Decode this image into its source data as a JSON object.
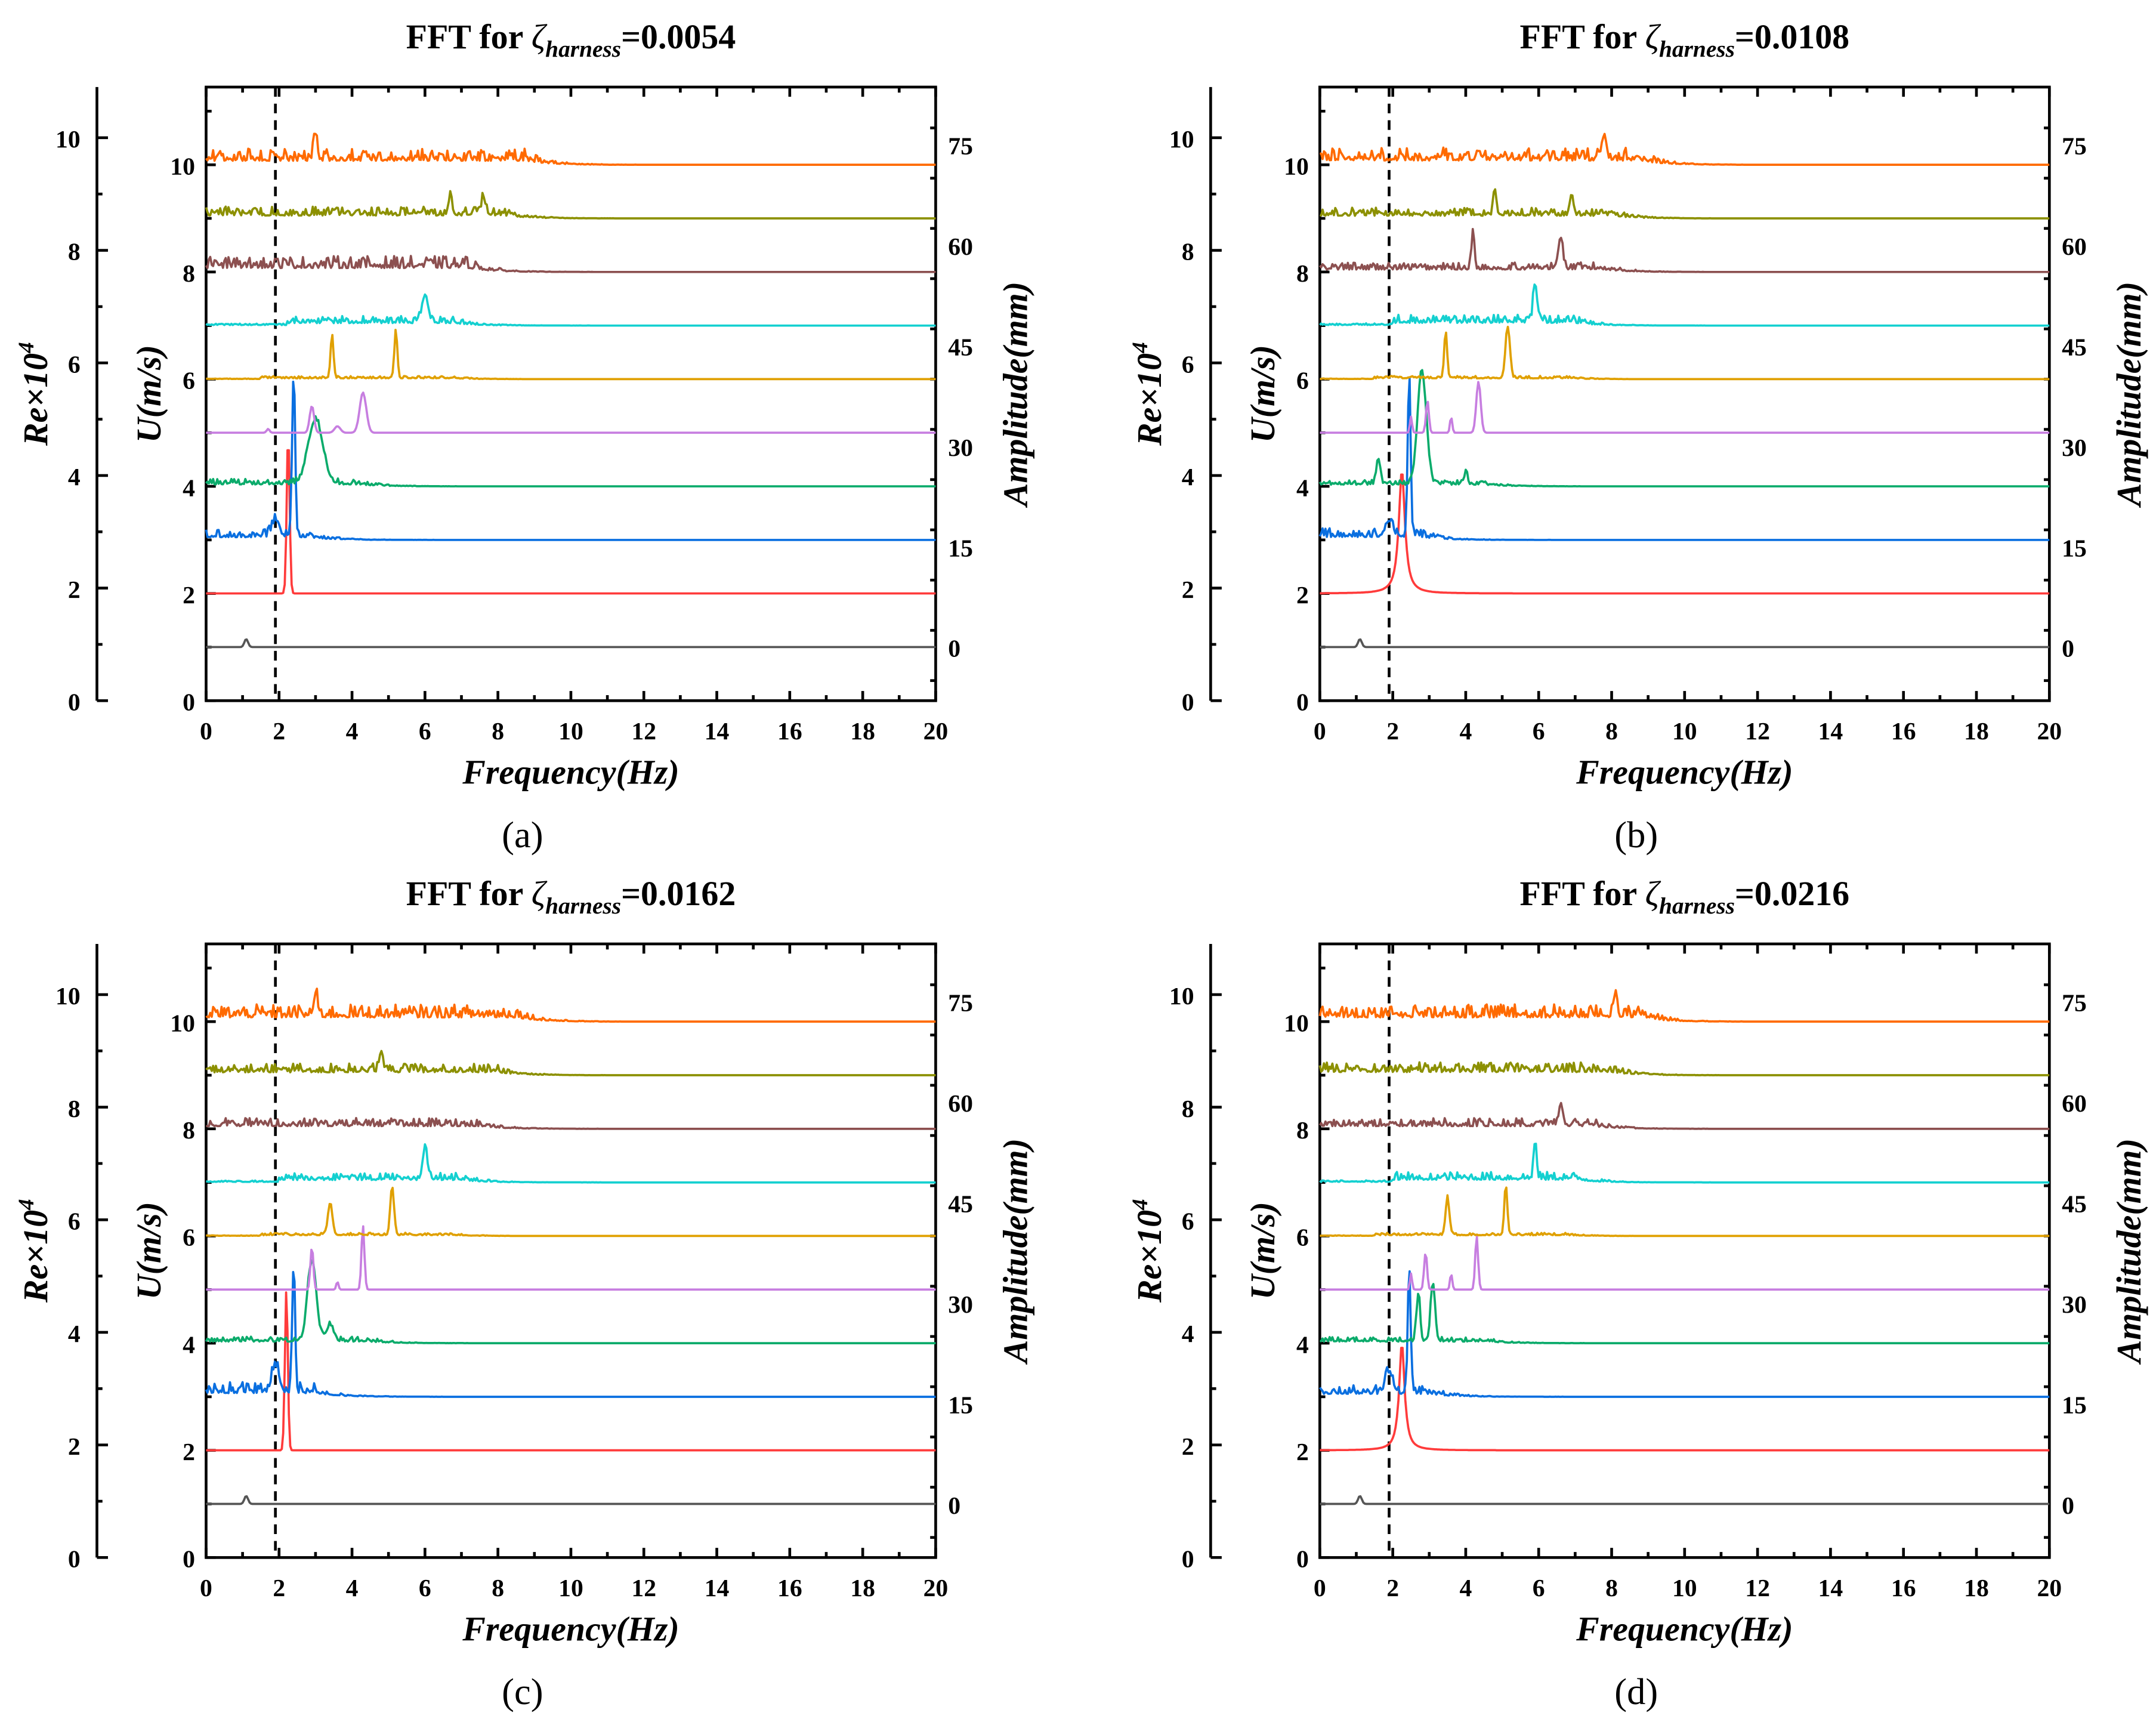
{
  "chart_data": [
    {
      "type": "line",
      "panel_label": "(a)",
      "title": {
        "prefix": "FFT for ",
        "symbol": "ζ",
        "subscript": "harness",
        "suffix": "=0.0054"
      },
      "xlabel": "Frequency(Hz)",
      "ylabel_left_outer": {
        "base": "Re×10",
        "sup": "4"
      },
      "ylabel_left_inner": "U(m/s)",
      "ylabel_right": "Amplitude(mm)",
      "xlim": [
        0,
        20
      ],
      "xticks": [
        "0",
        "2",
        "4",
        "6",
        "8",
        "10",
        "12",
        "14",
        "16",
        "18",
        "20"
      ],
      "re_ticks": [
        "0",
        "2",
        "4",
        "6",
        "8",
        "10"
      ],
      "re_lim": [
        0,
        10.9
      ],
      "u_ticks": [
        "0",
        "2",
        "4",
        "6",
        "8",
        "10"
      ],
      "u_lim": [
        0,
        11.45
      ],
      "amp_ticks": [
        "0",
        "15",
        "30",
        "45",
        "60",
        "75"
      ],
      "amp_zero_at_u": 1.0,
      "amp_per_u": 8,
      "dashed_line_x": 1.9,
      "series": [
        {
          "name": "U=1",
          "color": "#555555",
          "baseline": 1,
          "peaks": [
            [
              1.1,
              0.15,
              0.05
            ]
          ],
          "noise": [
            0,
            0,
            0
          ]
        },
        {
          "name": "U=2",
          "color": "#ff3b3b",
          "baseline": 2,
          "peaks": [
            [
              2.25,
              3.0,
              0.04
            ]
          ],
          "noise": [
            0,
            0,
            0
          ]
        },
        {
          "name": "U=3",
          "color": "#0a6fe0",
          "baseline": 3,
          "peaks": [
            [
              2.4,
              3.1,
              0.04
            ],
            [
              1.9,
              0.3,
              0.1
            ]
          ],
          "noise": [
            0,
            2.8,
            0.2
          ]
        },
        {
          "name": "U=4",
          "color": "#0bab6b",
          "baseline": 4,
          "peaks": [
            [
              3.0,
              1.2,
              0.2
            ]
          ],
          "noise": [
            0,
            4.2,
            0.14
          ]
        },
        {
          "name": "U=5",
          "color": "#c77ee0",
          "baseline": 5,
          "peaks": [
            [
              2.9,
              0.5,
              0.06
            ],
            [
              3.6,
              0.12,
              0.08
            ],
            [
              4.3,
              0.75,
              0.09
            ],
            [
              1.7,
              0.07,
              0.04
            ]
          ],
          "noise": [
            0,
            0,
            0
          ]
        },
        {
          "name": "U=6",
          "color": "#e0a000",
          "baseline": 6,
          "peaks": [
            [
              3.45,
              0.8,
              0.04
            ],
            [
              5.2,
              0.9,
              0.04
            ]
          ],
          "noise": [
            1.5,
            6.8,
            0.06
          ]
        },
        {
          "name": "U=7",
          "color": "#14d0d0",
          "baseline": 7,
          "peaks": [
            [
              6.0,
              0.5,
              0.08
            ]
          ],
          "noise": [
            2.2,
            6.8,
            0.18
          ]
        },
        {
          "name": "U=8",
          "color": "#8c5050",
          "baseline": 8,
          "peaks": [],
          "noise": [
            0,
            7.2,
            0.3
          ]
        },
        {
          "name": "U=9",
          "color": "#8c9000",
          "baseline": 9,
          "peaks": [
            [
              6.7,
              0.3,
              0.05
            ],
            [
              7.6,
              0.35,
              0.05
            ]
          ],
          "noise": [
            0,
            8.2,
            0.22
          ]
        },
        {
          "name": "U=10",
          "color": "#ff6a00",
          "baseline": 10,
          "peaks": [
            [
              3.0,
              0.5,
              0.05
            ]
          ],
          "noise": [
            0,
            8.8,
            0.3
          ]
        }
      ]
    },
    {
      "type": "line",
      "panel_label": "(b)",
      "title": {
        "prefix": "FFT for ",
        "symbol": "ζ",
        "subscript": "harness",
        "suffix": "=0.0108"
      },
      "xlabel": "Frequency(Hz)",
      "ylabel_left_outer": {
        "base": "Re×10",
        "sup": "4"
      },
      "ylabel_left_inner": "U(m/s)",
      "ylabel_right": "Amplitude(mm)",
      "xlim": [
        0,
        20
      ],
      "xticks": [
        "0",
        "2",
        "4",
        "6",
        "8",
        "10",
        "12",
        "14",
        "16",
        "18",
        "20"
      ],
      "re_ticks": [
        "0",
        "2",
        "4",
        "6",
        "8",
        "10"
      ],
      "re_lim": [
        0,
        10.9
      ],
      "u_ticks": [
        "0",
        "2",
        "4",
        "6",
        "8",
        "10"
      ],
      "u_lim": [
        0,
        11.45
      ],
      "amp_ticks": [
        "0",
        "15",
        "30",
        "45",
        "60",
        "75"
      ],
      "amp_zero_at_u": 1.0,
      "amp_per_u": 8,
      "dashed_line_x": 1.9,
      "series": [
        {
          "name": "U=1",
          "color": "#555555",
          "baseline": 1,
          "peaks": [
            [
              1.1,
              0.15,
              0.05
            ]
          ],
          "noise": [
            0,
            0,
            0
          ]
        },
        {
          "name": "U=2",
          "color": "#ff3b3b",
          "baseline": 2,
          "peaks": [
            [
              2.25,
              2.3,
              -0.1
            ]
          ],
          "noise": [
            0,
            0,
            0
          ]
        },
        {
          "name": "U=3",
          "color": "#0a6fe0",
          "baseline": 3,
          "peaks": [
            [
              2.45,
              3.0,
              0.04
            ],
            [
              1.9,
              0.3,
              0.1
            ]
          ],
          "noise": [
            0,
            2.8,
            0.22
          ]
        },
        {
          "name": "U=4",
          "color": "#0bab6b",
          "baseline": 4,
          "peaks": [
            [
              2.8,
              2.1,
              0.12
            ],
            [
              1.6,
              0.5,
              0.05
            ],
            [
              4.0,
              0.2,
              0.05
            ]
          ],
          "noise": [
            0,
            4.5,
            0.12
          ]
        },
        {
          "name": "U=5",
          "color": "#c77ee0",
          "baseline": 5,
          "peaks": [
            [
              2.5,
              0.3,
              0.03
            ],
            [
              2.95,
              0.6,
              0.04
            ],
            [
              3.6,
              0.3,
              0.03
            ],
            [
              4.35,
              0.95,
              0.06
            ]
          ],
          "noise": [
            0,
            0,
            0
          ]
        },
        {
          "name": "U=6",
          "color": "#e0a000",
          "baseline": 6,
          "peaks": [
            [
              3.45,
              0.85,
              0.04
            ],
            [
              5.15,
              0.95,
              0.06
            ]
          ],
          "noise": [
            1.5,
            6.8,
            0.06
          ]
        },
        {
          "name": "U=7",
          "color": "#14d0d0",
          "baseline": 7,
          "peaks": [
            [
              5.9,
              0.75,
              0.05
            ]
          ],
          "noise": [
            2.0,
            7.0,
            0.2
          ]
        },
        {
          "name": "U=8",
          "color": "#8c5050",
          "baseline": 8,
          "peaks": [
            [
              4.2,
              0.7,
              0.04
            ],
            [
              6.6,
              0.6,
              0.06
            ]
          ],
          "noise": [
            0,
            7.8,
            0.18
          ]
        },
        {
          "name": "U=9",
          "color": "#8c9000",
          "baseline": 9,
          "peaks": [
            [
              4.8,
              0.5,
              0.04
            ],
            [
              6.9,
              0.4,
              0.05
            ]
          ],
          "noise": [
            0,
            8.0,
            0.2
          ]
        },
        {
          "name": "U=10",
          "color": "#ff6a00",
          "baseline": 10,
          "peaks": [
            [
              7.8,
              0.5,
              0.05
            ]
          ],
          "noise": [
            0,
            8.8,
            0.32
          ]
        }
      ]
    },
    {
      "type": "line",
      "panel_label": "(c)",
      "title": {
        "prefix": "FFT for ",
        "symbol": "ζ",
        "subscript": "harness",
        "suffix": "=0.0162"
      },
      "xlabel": "Frequency(Hz)",
      "ylabel_left_outer": {
        "base": "Re×10",
        "sup": "4"
      },
      "ylabel_left_inner": "U(m/s)",
      "ylabel_right": "Amplitude(mm)",
      "xlim": [
        0,
        20
      ],
      "xticks": [
        "0",
        "2",
        "4",
        "6",
        "8",
        "10",
        "12",
        "14",
        "16",
        "18",
        "20"
      ],
      "re_ticks": [
        "0",
        "2",
        "4",
        "6",
        "8",
        "10"
      ],
      "re_lim": [
        0,
        10.9
      ],
      "u_ticks": [
        "0",
        "2",
        "4",
        "6",
        "8",
        "10"
      ],
      "u_lim": [
        0,
        11.45
      ],
      "amp_ticks": [
        "0",
        "15",
        "30",
        "45",
        "60",
        "75"
      ],
      "amp_zero_at_u": 1.0,
      "amp_per_u": 8,
      "dashed_line_x": 1.9,
      "series": [
        {
          "name": "U=1",
          "color": "#555555",
          "baseline": 1,
          "peaks": [
            [
              1.1,
              0.15,
              0.05
            ]
          ],
          "noise": [
            0,
            0,
            0
          ]
        },
        {
          "name": "U=2",
          "color": "#ff3b3b",
          "baseline": 2,
          "peaks": [
            [
              2.2,
              3.0,
              0.04
            ]
          ],
          "noise": [
            0,
            0,
            0
          ]
        },
        {
          "name": "U=3",
          "color": "#0a6fe0",
          "baseline": 3,
          "peaks": [
            [
              2.4,
              2.4,
              0.04
            ],
            [
              1.9,
              0.5,
              0.1
            ]
          ],
          "noise": [
            0,
            3.0,
            0.28
          ]
        },
        {
          "name": "U=4",
          "color": "#0bab6b",
          "baseline": 4,
          "peaks": [
            [
              2.9,
              1.5,
              0.12
            ],
            [
              3.4,
              0.3,
              0.1
            ]
          ],
          "noise": [
            0,
            4.5,
            0.12
          ]
        },
        {
          "name": "U=5",
          "color": "#c77ee0",
          "baseline": 5,
          "peaks": [
            [
              2.9,
              0.8,
              0.04
            ],
            [
              3.6,
              0.15,
              0.03
            ],
            [
              4.3,
              1.2,
              0.04
            ]
          ],
          "noise": [
            0,
            0,
            0
          ]
        },
        {
          "name": "U=6",
          "color": "#e0a000",
          "baseline": 6,
          "peaks": [
            [
              3.4,
              0.6,
              0.06
            ],
            [
              5.1,
              0.9,
              0.05
            ]
          ],
          "noise": [
            1.5,
            6.8,
            0.06
          ]
        },
        {
          "name": "U=7",
          "color": "#14d0d0",
          "baseline": 7,
          "peaks": [
            [
              6.0,
              0.6,
              0.06
            ]
          ],
          "noise": [
            2.0,
            7.0,
            0.18
          ]
        },
        {
          "name": "U=8",
          "color": "#8c5050",
          "baseline": 8,
          "peaks": [],
          "noise": [
            0,
            7.5,
            0.2
          ]
        },
        {
          "name": "U=9",
          "color": "#8c9000",
          "baseline": 9,
          "peaks": [
            [
              4.8,
              0.4,
              0.05
            ]
          ],
          "noise": [
            0,
            8.0,
            0.22
          ]
        },
        {
          "name": "U=10",
          "color": "#ff6a00",
          "baseline": 10,
          "peaks": [
            [
              3.0,
              0.4,
              0.05
            ]
          ],
          "noise": [
            0,
            8.5,
            0.32
          ]
        }
      ]
    },
    {
      "type": "line",
      "panel_label": "(d)",
      "title": {
        "prefix": "FFT for ",
        "symbol": "ζ",
        "subscript": "harness",
        "suffix": "=0.0216"
      },
      "xlabel": "Frequency(Hz)",
      "ylabel_left_outer": {
        "base": "Re×10",
        "sup": "4"
      },
      "ylabel_left_inner": "U(m/s)",
      "ylabel_right": "Amplitude(mm)",
      "xlim": [
        0,
        20
      ],
      "xticks": [
        "0",
        "2",
        "4",
        "6",
        "8",
        "10",
        "12",
        "14",
        "16",
        "18",
        "20"
      ],
      "re_ticks": [
        "0",
        "2",
        "4",
        "6",
        "8",
        "10"
      ],
      "re_lim": [
        0,
        10.9
      ],
      "u_ticks": [
        "0",
        "2",
        "4",
        "6",
        "8",
        "10"
      ],
      "u_lim": [
        0,
        11.45
      ],
      "amp_ticks": [
        "0",
        "15",
        "30",
        "45",
        "60",
        "75"
      ],
      "amp_zero_at_u": 1.0,
      "amp_per_u": 8,
      "dashed_line_x": 1.9,
      "series": [
        {
          "name": "U=1",
          "color": "#555555",
          "baseline": 1,
          "peaks": [
            [
              1.1,
              0.15,
              0.05
            ]
          ],
          "noise": [
            0,
            0,
            0
          ]
        },
        {
          "name": "U=2",
          "color": "#ff3b3b",
          "baseline": 2,
          "peaks": [
            [
              2.25,
              2.0,
              -0.09
            ]
          ],
          "noise": [
            0,
            0,
            0
          ]
        },
        {
          "name": "U=3",
          "color": "#0a6fe0",
          "baseline": 3,
          "peaks": [
            [
              2.45,
              2.3,
              0.04
            ],
            [
              1.9,
              0.4,
              0.1
            ]
          ],
          "noise": [
            0,
            3.0,
            0.22
          ]
        },
        {
          "name": "U=4",
          "color": "#0bab6b",
          "baseline": 4,
          "peaks": [
            [
              2.7,
              0.9,
              0.05
            ],
            [
              3.1,
              1.1,
              0.06
            ]
          ],
          "noise": [
            0,
            4.5,
            0.12
          ]
        },
        {
          "name": "U=5",
          "color": "#c77ee0",
          "baseline": 5,
          "peaks": [
            [
              2.5,
              0.3,
              0.03
            ],
            [
              2.9,
              0.7,
              0.04
            ],
            [
              3.6,
              0.3,
              0.03
            ],
            [
              4.3,
              1.0,
              0.04
            ]
          ],
          "noise": [
            0,
            0,
            0
          ]
        },
        {
          "name": "U=6",
          "color": "#e0a000",
          "baseline": 6,
          "peaks": [
            [
              3.5,
              0.7,
              0.05
            ],
            [
              5.1,
              0.95,
              0.04
            ]
          ],
          "noise": [
            1.5,
            6.8,
            0.06
          ]
        },
        {
          "name": "U=7",
          "color": "#14d0d0",
          "baseline": 7,
          "peaks": [
            [
              5.9,
              0.7,
              0.04
            ]
          ],
          "noise": [
            2.0,
            7.0,
            0.2
          ]
        },
        {
          "name": "U=8",
          "color": "#8c5050",
          "baseline": 8,
          "peaks": [
            [
              6.6,
              0.4,
              0.05
            ]
          ],
          "noise": [
            0,
            7.5,
            0.2
          ]
        },
        {
          "name": "U=9",
          "color": "#8c9000",
          "baseline": 9,
          "peaks": [],
          "noise": [
            0,
            8.0,
            0.24
          ]
        },
        {
          "name": "U=10",
          "color": "#ff6a00",
          "baseline": 10,
          "peaks": [
            [
              8.1,
              0.4,
              0.05
            ]
          ],
          "noise": [
            0,
            8.8,
            0.32
          ]
        }
      ]
    }
  ]
}
